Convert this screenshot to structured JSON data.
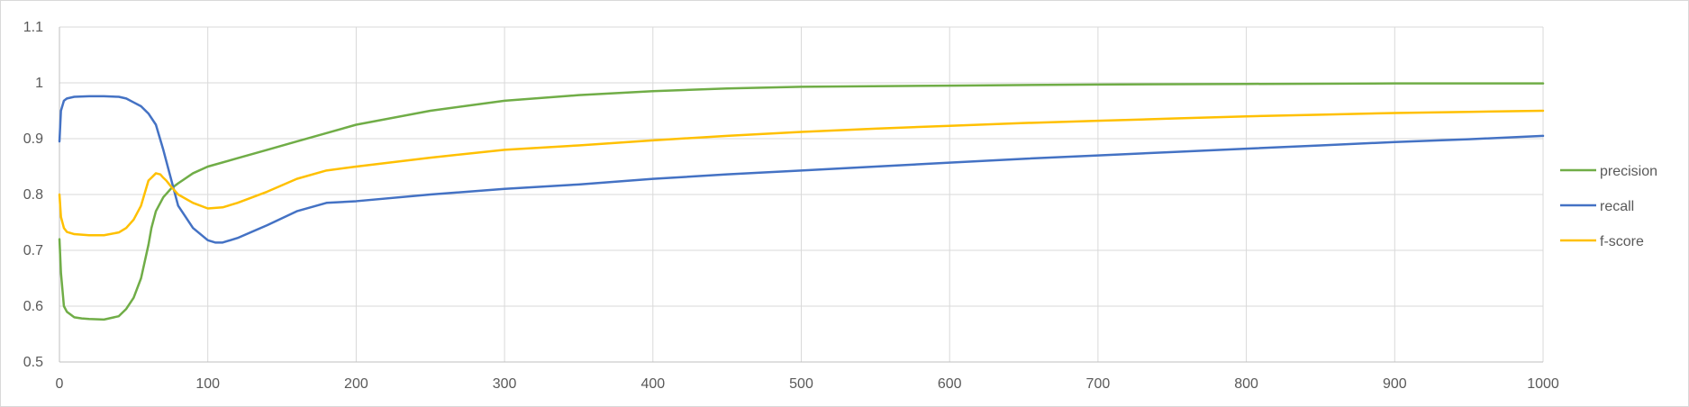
{
  "chart_data": {
    "type": "line",
    "title": "",
    "xlabel": "",
    "ylabel": "",
    "xlim": [
      0,
      1000
    ],
    "ylim": [
      0.5,
      1.1
    ],
    "x_ticks": [
      0,
      100,
      200,
      300,
      400,
      500,
      600,
      700,
      800,
      900,
      1000
    ],
    "x_tick_labels": [
      "0",
      "100",
      "200",
      "300",
      "400",
      "500",
      "600",
      "700",
      "800",
      "900",
      "1000"
    ],
    "y_ticks": [
      0.5,
      0.6,
      0.7,
      0.8,
      0.9,
      1.0,
      1.1
    ],
    "y_tick_labels": [
      "0.5",
      "0.6",
      "0.7",
      "0.8",
      "0.9",
      "1",
      "1.1"
    ],
    "grid": true,
    "legend_position": "right",
    "series": [
      {
        "name": "precision",
        "color": "#70ad47",
        "x": [
          0,
          1,
          3,
          5,
          10,
          15,
          20,
          30,
          40,
          45,
          50,
          55,
          60,
          62,
          65,
          70,
          75,
          80,
          90,
          100,
          120,
          140,
          160,
          180,
          200,
          250,
          300,
          350,
          400,
          450,
          500,
          600,
          700,
          800,
          900,
          1000
        ],
        "y": [
          0.72,
          0.66,
          0.6,
          0.59,
          0.58,
          0.578,
          0.577,
          0.576,
          0.582,
          0.595,
          0.615,
          0.65,
          0.71,
          0.74,
          0.77,
          0.795,
          0.81,
          0.82,
          0.838,
          0.85,
          0.865,
          0.88,
          0.895,
          0.91,
          0.925,
          0.95,
          0.968,
          0.978,
          0.985,
          0.99,
          0.993,
          0.995,
          0.997,
          0.998,
          0.999,
          0.999
        ]
      },
      {
        "name": "recall",
        "color": "#4472c4",
        "x": [
          0,
          1,
          3,
          5,
          10,
          20,
          30,
          40,
          45,
          50,
          55,
          60,
          65,
          70,
          75,
          80,
          90,
          100,
          105,
          110,
          120,
          140,
          160,
          180,
          200,
          250,
          300,
          350,
          400,
          450,
          500,
          550,
          600,
          650,
          700,
          750,
          800,
          850,
          900,
          950,
          1000
        ],
        "y": [
          0.895,
          0.95,
          0.968,
          0.972,
          0.975,
          0.976,
          0.976,
          0.975,
          0.972,
          0.965,
          0.958,
          0.945,
          0.925,
          0.88,
          0.83,
          0.78,
          0.74,
          0.718,
          0.714,
          0.714,
          0.722,
          0.745,
          0.77,
          0.785,
          0.788,
          0.8,
          0.81,
          0.818,
          0.828,
          0.836,
          0.843,
          0.85,
          0.857,
          0.864,
          0.87,
          0.876,
          0.882,
          0.888,
          0.894,
          0.899,
          0.905
        ]
      },
      {
        "name": "f-score",
        "color": "#ffc000",
        "x": [
          0,
          1,
          3,
          5,
          10,
          20,
          30,
          40,
          45,
          50,
          55,
          60,
          62,
          65,
          68,
          70,
          72,
          75,
          80,
          90,
          100,
          110,
          120,
          140,
          160,
          180,
          200,
          250,
          300,
          350,
          400,
          450,
          500,
          550,
          600,
          650,
          700,
          750,
          800,
          850,
          900,
          950,
          1000
        ],
        "y": [
          0.8,
          0.76,
          0.74,
          0.733,
          0.729,
          0.727,
          0.727,
          0.732,
          0.74,
          0.755,
          0.78,
          0.825,
          0.83,
          0.838,
          0.836,
          0.83,
          0.825,
          0.815,
          0.8,
          0.785,
          0.775,
          0.777,
          0.785,
          0.805,
          0.828,
          0.843,
          0.85,
          0.866,
          0.88,
          0.888,
          0.897,
          0.905,
          0.912,
          0.918,
          0.923,
          0.928,
          0.932,
          0.936,
          0.94,
          0.943,
          0.946,
          0.948,
          0.95
        ]
      }
    ]
  }
}
